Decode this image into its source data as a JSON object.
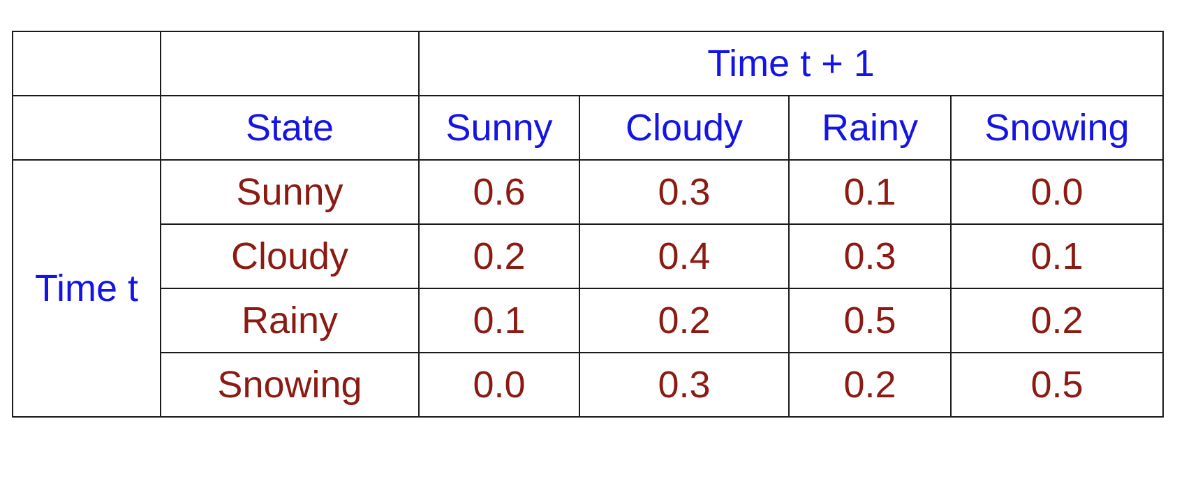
{
  "table": {
    "col_group_label": "Time t + 1",
    "row_group_label": "Time t",
    "state_header": "State",
    "columns": [
      "Sunny",
      "Cloudy",
      "Rainy",
      "Snowing"
    ],
    "rows": [
      {
        "state": "Sunny",
        "values": [
          "0.6",
          "0.3",
          "0.1",
          "0.0"
        ]
      },
      {
        "state": "Cloudy",
        "values": [
          "0.2",
          "0.4",
          "0.3",
          "0.1"
        ]
      },
      {
        "state": "Rainy",
        "values": [
          "0.1",
          "0.2",
          "0.5",
          "0.2"
        ]
      },
      {
        "state": "Snowing",
        "values": [
          "0.0",
          "0.3",
          "0.2",
          "0.5"
        ]
      }
    ],
    "colors": {
      "header_text": "#1414e6",
      "value_text": "#8b1a12",
      "border": "#1a1a1a"
    }
  }
}
